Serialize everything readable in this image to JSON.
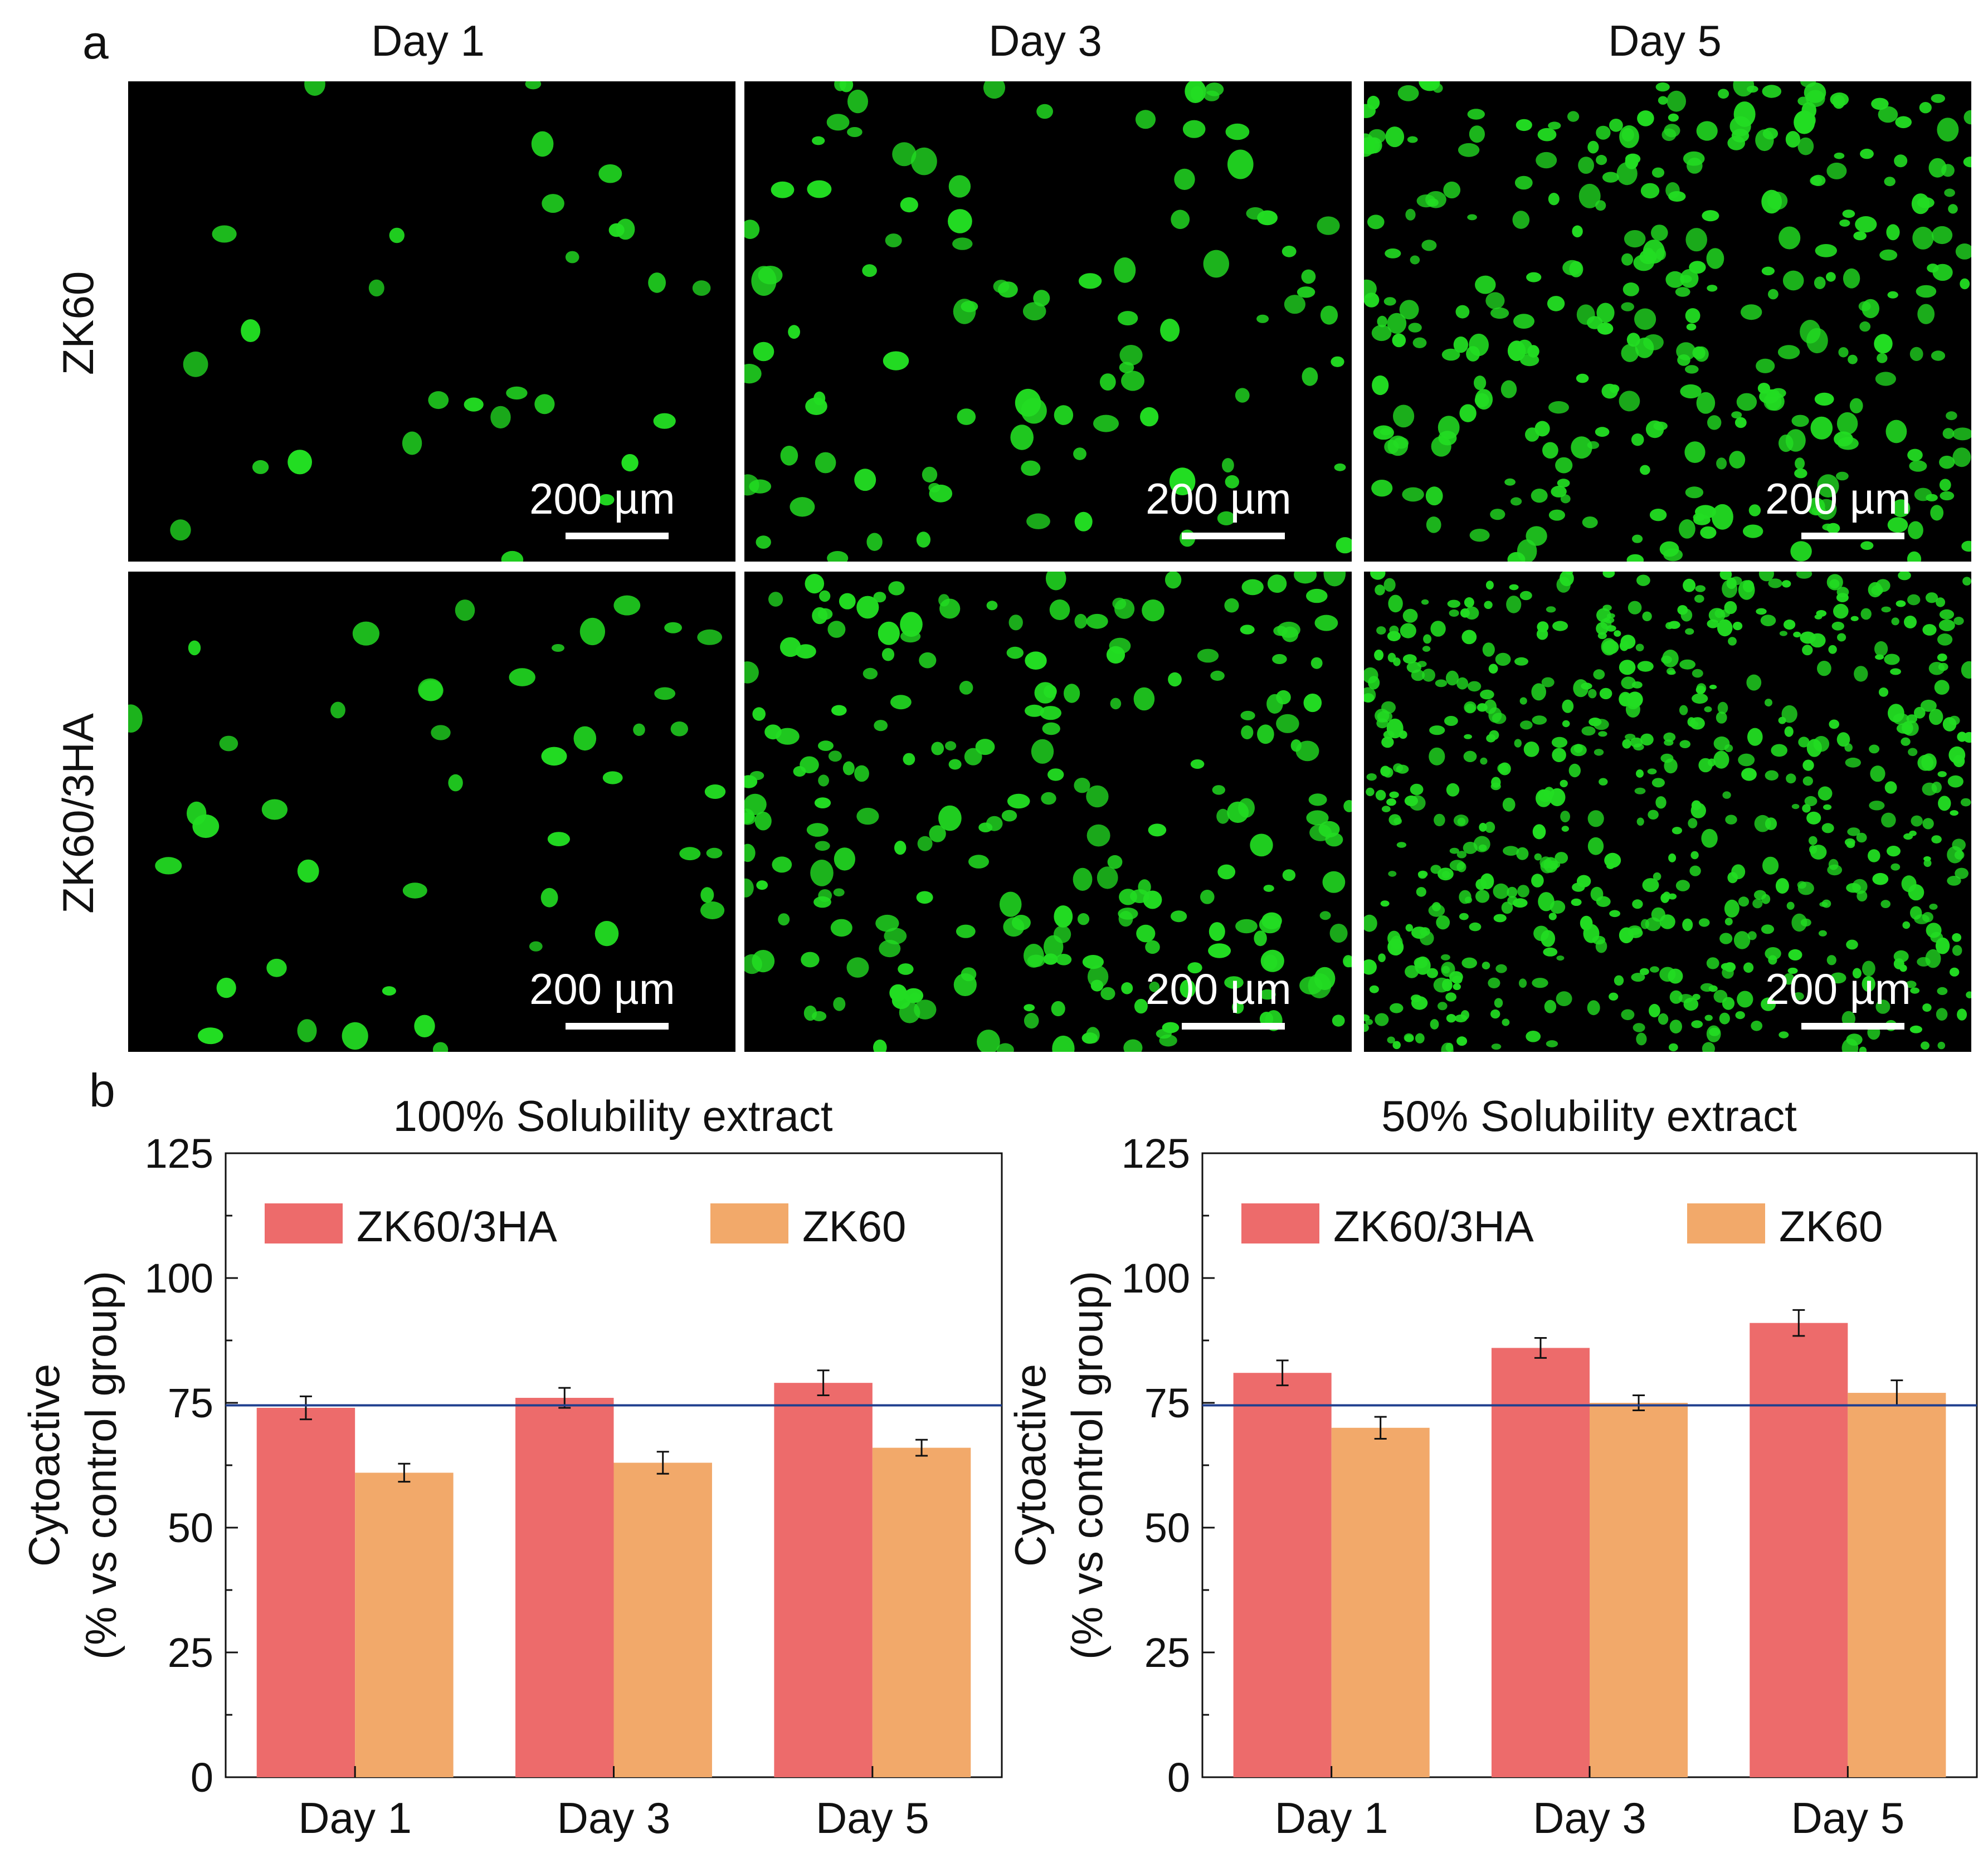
{
  "panel_a": {
    "label": "a",
    "columns": [
      "Day 1",
      "Day 3",
      "Day 5"
    ],
    "rows": [
      "ZK60",
      "ZK60/3HA"
    ],
    "scale_bar_text": "200 µm",
    "cell_color": "#22dd22",
    "images": [
      {
        "name": "zk60-day1",
        "cell_count": 28
      },
      {
        "name": "zk60-day3",
        "cell_count": 95
      },
      {
        "name": "zk60-day5",
        "cell_count": 320
      },
      {
        "name": "zk60-3ha-day1",
        "cell_count": 45
      },
      {
        "name": "zk60-3ha-day3",
        "cell_count": 230
      },
      {
        "name": "zk60-3ha-day5",
        "cell_count": 620
      }
    ]
  },
  "panel_b": {
    "label": "b"
  },
  "chart_data": [
    {
      "type": "bar",
      "title": "100% Solubility extract",
      "ylabel_line1": "Cytoactive",
      "ylabel_line2": "(% vs control group)",
      "categories": [
        "Day 1",
        "Day 3",
        "Day 5"
      ],
      "ylim": [
        0,
        125
      ],
      "yticks": [
        0,
        25,
        50,
        75,
        100,
        125
      ],
      "reference_line": 74.5,
      "legend_position": "top",
      "series": [
        {
          "name": "ZK60/3HA",
          "color": "#ed6b6b",
          "values": [
            74,
            76,
            79
          ],
          "errors": [
            2.3,
            2.0,
            2.5
          ]
        },
        {
          "name": "ZK60",
          "color": "#f2a96a",
          "values": [
            61,
            63,
            66
          ],
          "errors": [
            1.8,
            2.2,
            1.6
          ]
        }
      ]
    },
    {
      "type": "bar",
      "title": "50% Solubility extract",
      "ylabel_line1": "Cytoactive",
      "ylabel_line2": "(% vs control group)",
      "categories": [
        "Day 1",
        "Day 3",
        "Day 5"
      ],
      "ylim": [
        0,
        125
      ],
      "yticks": [
        0,
        25,
        50,
        75,
        100,
        125
      ],
      "reference_line": 74.5,
      "legend_position": "top",
      "series": [
        {
          "name": "ZK60/3HA",
          "color": "#ed6b6b",
          "values": [
            81,
            86,
            91
          ],
          "errors": [
            2.5,
            2.0,
            2.6
          ]
        },
        {
          "name": "ZK60",
          "color": "#f2a96a",
          "values": [
            70,
            75,
            77
          ],
          "errors": [
            2.2,
            1.5,
            2.5
          ]
        }
      ]
    }
  ]
}
